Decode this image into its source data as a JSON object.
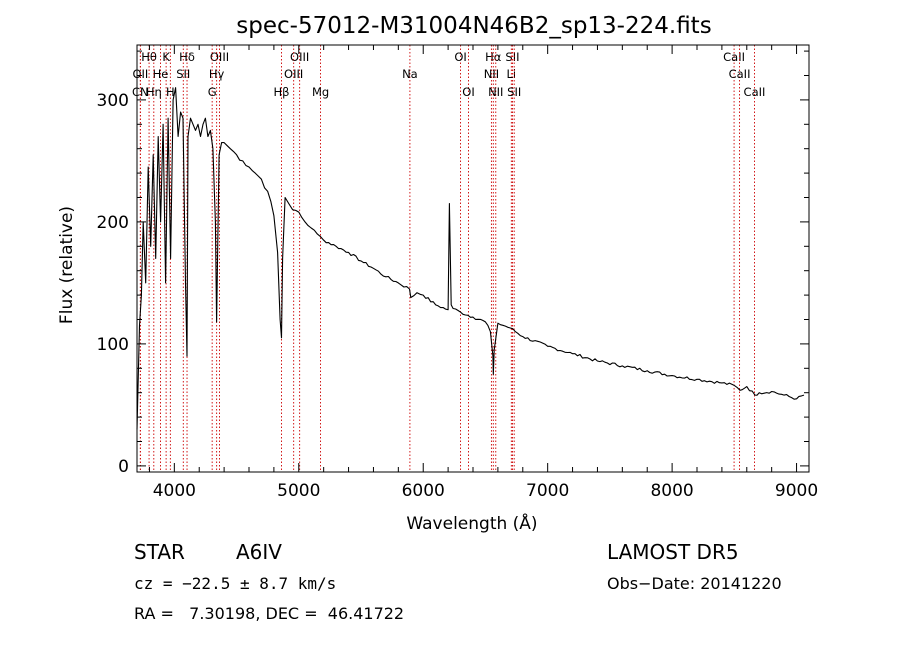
{
  "chart_data": {
    "type": "line",
    "title": "spec-57012-M31004N46B2_sp13-224.fits",
    "xlabel": "Wavelength (Å)",
    "ylabel": "Flux (relative)",
    "xlim": [
      3700,
      9100
    ],
    "ylim": [
      -5,
      345
    ],
    "x_ticks": [
      4000,
      5000,
      6000,
      7000,
      8000,
      9000
    ],
    "x_tick_labels": [
      "4000",
      "5000",
      "6000",
      "7000",
      "8000",
      "9000"
    ],
    "y_ticks": [
      0,
      100,
      200,
      300
    ],
    "y_tick_labels": [
      "0",
      "100",
      "200",
      "300"
    ],
    "grid": false,
    "series": [
      {
        "color": "#000000",
        "x": [
          3700,
          3720,
          3735,
          3750,
          3770,
          3790,
          3810,
          3830,
          3850,
          3870,
          3890,
          3910,
          3930,
          3950,
          3970,
          3990,
          4010,
          4030,
          4050,
          4070,
          4090,
          4102,
          4110,
          4130,
          4150,
          4170,
          4190,
          4210,
          4230,
          4250,
          4270,
          4290,
          4310,
          4330,
          4340,
          4360,
          4380,
          4400,
          4450,
          4500,
          4550,
          4600,
          4650,
          4700,
          4750,
          4800,
          4830,
          4850,
          4861,
          4870,
          4890,
          4920,
          4950,
          5000,
          5050,
          5100,
          5150,
          5200,
          5300,
          5400,
          5500,
          5600,
          5700,
          5800,
          5890,
          5900,
          5950,
          6000,
          6100,
          6200,
          6210,
          6225,
          6240,
          6300,
          6400,
          6500,
          6540,
          6560,
          6563,
          6570,
          6600,
          6700,
          6800,
          7000,
          7200,
          7400,
          7600,
          7800,
          8000,
          8200,
          8400,
          8500,
          8545,
          8600,
          8665,
          8700,
          8800,
          8900,
          9000,
          9060
        ],
        "y": [
          30,
          115,
          140,
          200,
          150,
          245,
          180,
          255,
          170,
          270,
          200,
          280,
          150,
          285,
          170,
          300,
          310,
          270,
          290,
          285,
          150,
          90,
          270,
          285,
          280,
          275,
          280,
          270,
          280,
          285,
          270,
          275,
          260,
          200,
          118,
          255,
          265,
          265,
          260,
          255,
          250,
          245,
          240,
          235,
          225,
          205,
          175,
          120,
          105,
          170,
          220,
          215,
          210,
          208,
          200,
          195,
          190,
          185,
          180,
          175,
          168,
          162,
          155,
          150,
          145,
          138,
          142,
          140,
          132,
          128,
          215,
          132,
          129,
          126,
          122,
          118,
          110,
          90,
          75,
          95,
          117,
          113,
          106,
          98,
          92,
          86,
          82,
          78,
          74,
          71,
          68,
          66,
          62,
          65,
          58,
          60,
          61,
          58,
          55,
          58
        ]
      }
    ],
    "line_markers": [
      {
        "label": "Hθ",
        "x": 3797,
        "row": 0
      },
      {
        "label": "K",
        "x": 3934,
        "row": 0
      },
      {
        "label": "Hδ",
        "x": 4102,
        "row": 0
      },
      {
        "label": "OIII",
        "x": 4363,
        "row": 0
      },
      {
        "label": "OIII",
        "x": 5007,
        "row": 0
      },
      {
        "label": "OI",
        "x": 6300,
        "row": 0
      },
      {
        "label": "Hα",
        "x": 6563,
        "row": 0
      },
      {
        "label": "SII",
        "x": 6717,
        "row": 0
      },
      {
        "label": "CaII",
        "x": 8498,
        "row": 0
      },
      {
        "label": "OII",
        "x": 3727,
        "row": 1
      },
      {
        "label": "He",
        "x": 3889,
        "row": 1
      },
      {
        "label": "SII",
        "x": 4072,
        "row": 1
      },
      {
        "label": "Hγ",
        "x": 4340,
        "row": 1
      },
      {
        "label": "OIII",
        "x": 4959,
        "row": 1
      },
      {
        "label": "Na",
        "x": 5893,
        "row": 1
      },
      {
        "label": "NII",
        "x": 6548,
        "row": 1
      },
      {
        "label": "Li",
        "x": 6708,
        "row": 1
      },
      {
        "label": "CaII",
        "x": 8542,
        "row": 1
      },
      {
        "label": "CN",
        "x": 3727,
        "row": 2
      },
      {
        "label": "Hη",
        "x": 3835,
        "row": 2
      },
      {
        "label": "H",
        "x": 3968,
        "row": 2
      },
      {
        "label": "G",
        "x": 4304,
        "row": 2
      },
      {
        "label": "Hβ",
        "x": 4861,
        "row": 2
      },
      {
        "label": "Mg",
        "x": 5175,
        "row": 2
      },
      {
        "label": "OI",
        "x": 6364,
        "row": 2
      },
      {
        "label": "NII",
        "x": 6583,
        "row": 2
      },
      {
        "label": "SII",
        "x": 6731,
        "row": 2
      },
      {
        "label": "CaII",
        "x": 8662,
        "row": 2
      }
    ]
  },
  "info": {
    "object_type": "STAR",
    "subclass": "A6IV",
    "survey": "LAMOST DR5",
    "redshift": "cz = −22.5 ± 8.7 km/s",
    "obs_date": "Obs−Date: 20141220",
    "coords": "RA =   7.30198, DEC =  46.41722"
  }
}
